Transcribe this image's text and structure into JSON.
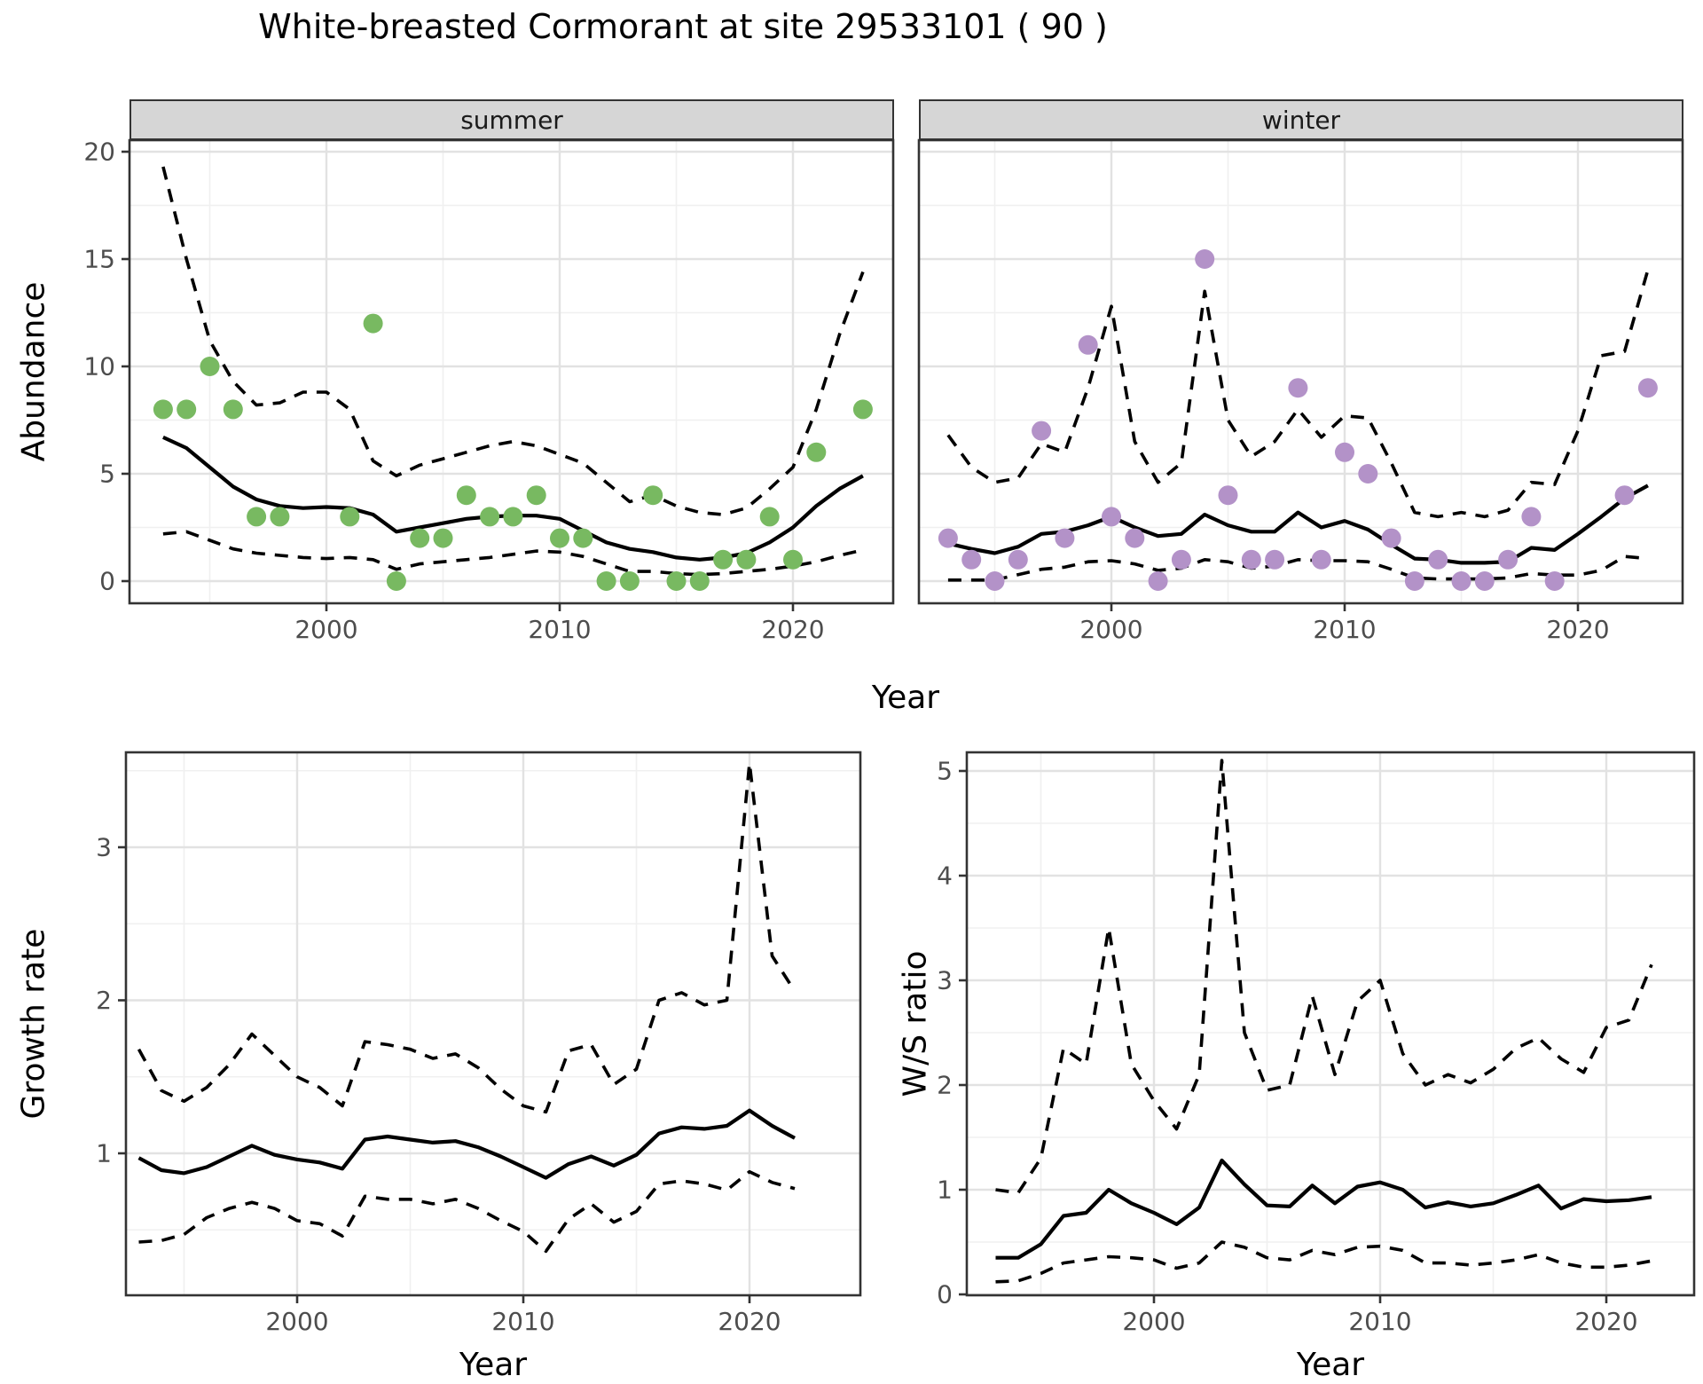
{
  "title": "White-breasted Cormorant at site 29533101 ( 90 )",
  "facets": {
    "summer_label": "summer",
    "winter_label": "winter"
  },
  "axes": {
    "abundance_y_title": "Abundance",
    "top_x_title": "Year",
    "growth_y_title": "Growth rate",
    "growth_x_title": "Year",
    "ws_y_title": "W/S ratio",
    "ws_x_title": "Year"
  },
  "colors": {
    "summer_point": "#78b961",
    "winter_point": "#b392c8",
    "line": "#000000",
    "strip_bg": "#d6d6d6",
    "panel_border": "#333333",
    "grid_major": "#e2e2e2",
    "grid_minor": "#f0f0f0",
    "tick_label": "#4d4d4d"
  },
  "chart_data": [
    {
      "panel": "summer",
      "type": "scatter",
      "title": "summer facet: observed abundance with modelled mean and dashed 90% interval",
      "xlabel": "Year",
      "ylabel": "Abundance",
      "ylim": [
        0,
        20
      ],
      "x_ref": 2000,
      "x_ticks": [
        2000,
        2010,
        2020
      ],
      "x_tick_labels": [
        "2000",
        "2010",
        "2020"
      ],
      "x_minor": [
        1995,
        2005,
        2015
      ],
      "y_ticks": [
        0,
        5,
        10,
        15,
        20
      ],
      "y_tick_labels": [
        "0",
        "5",
        "10",
        "15",
        "20"
      ],
      "y_minor": [
        2.5,
        7.5,
        12.5,
        17.5
      ],
      "years": [
        1993,
        1994,
        1995,
        1996,
        1997,
        1998,
        1999,
        2000,
        2001,
        2002,
        2003,
        2004,
        2005,
        2006,
        2007,
        2008,
        2009,
        2010,
        2011,
        2012,
        2013,
        2014,
        2015,
        2016,
        2017,
        2018,
        2019,
        2020,
        2021,
        2022,
        2023
      ],
      "mean": [
        6.7,
        6.2,
        5.3,
        4.4,
        3.8,
        3.5,
        3.4,
        3.45,
        3.4,
        3.1,
        2.3,
        2.5,
        2.7,
        2.9,
        3.0,
        3.05,
        3.05,
        2.9,
        2.35,
        1.8,
        1.5,
        1.35,
        1.1,
        1.0,
        1.1,
        1.3,
        1.8,
        2.5,
        3.5,
        4.3,
        4.9
      ],
      "ci_upper": [
        19.3,
        15.0,
        11.2,
        9.3,
        8.2,
        8.3,
        8.8,
        8.8,
        8.0,
        5.6,
        4.9,
        5.4,
        5.7,
        6.0,
        6.3,
        6.5,
        6.3,
        5.9,
        5.5,
        4.6,
        3.7,
        4.0,
        3.5,
        3.2,
        3.1,
        3.4,
        4.3,
        5.3,
        8.0,
        11.5,
        14.4
      ],
      "ci_lower": [
        2.2,
        2.3,
        1.9,
        1.5,
        1.3,
        1.2,
        1.1,
        1.05,
        1.1,
        1.0,
        0.55,
        0.8,
        0.9,
        1.0,
        1.1,
        1.25,
        1.4,
        1.35,
        1.15,
        0.8,
        0.45,
        0.45,
        0.35,
        0.3,
        0.35,
        0.45,
        0.55,
        0.7,
        0.9,
        1.2,
        1.45
      ],
      "points": {
        "color": "#78b961",
        "years": [
          1993,
          1994,
          1995,
          1996,
          1997,
          1998,
          2001,
          2002,
          2003,
          2004,
          2005,
          2006,
          2007,
          2008,
          2009,
          2010,
          2011,
          2012,
          2013,
          2014,
          2015,
          2016,
          2017,
          2018,
          2019,
          2020,
          2021,
          2023
        ],
        "values": [
          8,
          8,
          10,
          8,
          3,
          3,
          3,
          12,
          0,
          2,
          2,
          4,
          3,
          3,
          4,
          2,
          2,
          0,
          0,
          4,
          0,
          0,
          1,
          1,
          3,
          1,
          6,
          8
        ]
      }
    },
    {
      "panel": "winter",
      "type": "scatter",
      "title": "winter facet: observed abundance with modelled mean and dashed 90% interval",
      "xlabel": "Year",
      "ylabel": "Abundance",
      "ylim": [
        0,
        20
      ],
      "x_ref": 2000,
      "x_ticks": [
        2000,
        2010,
        2020
      ],
      "x_tick_labels": [
        "2000",
        "2010",
        "2020"
      ],
      "x_minor": [
        1995,
        2005,
        2015
      ],
      "y_ticks": [
        0,
        5,
        10,
        15,
        20
      ],
      "y_tick_labels": [
        "0",
        "5",
        "10",
        "15",
        "20"
      ],
      "y_minor": [
        2.5,
        7.5,
        12.5,
        17.5
      ],
      "years": [
        1993,
        1994,
        1995,
        1996,
        1997,
        1998,
        1999,
        2000,
        2001,
        2002,
        2003,
        2004,
        2005,
        2006,
        2007,
        2008,
        2009,
        2010,
        2011,
        2012,
        2013,
        2014,
        2015,
        2016,
        2017,
        2018,
        2019,
        2020,
        2021,
        2022,
        2023
      ],
      "mean": [
        1.75,
        1.5,
        1.3,
        1.6,
        2.2,
        2.3,
        2.6,
        3.0,
        2.5,
        2.1,
        2.2,
        3.1,
        2.6,
        2.3,
        2.3,
        3.2,
        2.5,
        2.8,
        2.4,
        1.7,
        1.05,
        1.0,
        0.85,
        0.85,
        0.9,
        1.55,
        1.45,
        2.2,
        3.0,
        3.85,
        4.45
      ],
      "ci_upper": [
        6.8,
        5.3,
        4.6,
        4.8,
        6.4,
        6.0,
        9.0,
        12.8,
        6.5,
        4.6,
        5.5,
        13.5,
        7.5,
        5.8,
        6.5,
        8.0,
        6.7,
        7.7,
        7.6,
        5.5,
        3.2,
        3.0,
        3.2,
        3.0,
        3.3,
        4.6,
        4.5,
        7.0,
        10.5,
        10.7,
        14.5
      ],
      "ci_lower": [
        0.05,
        0.05,
        0.05,
        0.3,
        0.55,
        0.65,
        0.9,
        0.95,
        0.8,
        0.5,
        0.6,
        1.0,
        0.9,
        0.6,
        0.7,
        1.0,
        0.95,
        0.95,
        0.9,
        0.55,
        0.15,
        0.1,
        0.1,
        0.1,
        0.15,
        0.35,
        0.28,
        0.28,
        0.5,
        1.15,
        1.05
      ],
      "points": {
        "color": "#b392c8",
        "years": [
          1993,
          1994,
          1995,
          1996,
          1997,
          1998,
          1999,
          2000,
          2001,
          2002,
          2003,
          2004,
          2005,
          2006,
          2007,
          2008,
          2009,
          2010,
          2011,
          2012,
          2013,
          2014,
          2015,
          2016,
          2017,
          2018,
          2019,
          2022,
          2023
        ],
        "values": [
          2,
          1,
          0,
          1,
          7,
          2,
          11,
          3,
          2,
          0,
          1,
          15,
          4,
          1,
          1,
          9,
          1,
          6,
          5,
          2,
          0,
          1,
          0,
          0,
          1,
          3,
          0,
          4,
          9
        ]
      }
    },
    {
      "panel": "growth",
      "type": "line",
      "title": "Growth rate with dashed 90% interval",
      "xlabel": "Year",
      "ylabel": "Growth rate",
      "ylim": [
        0.2,
        3.6
      ],
      "x_ref": 2000,
      "x_ticks": [
        2000,
        2010,
        2020
      ],
      "x_tick_labels": [
        "2000",
        "2010",
        "2020"
      ],
      "x_minor": [
        1995,
        2005,
        2015
      ],
      "y_ticks": [
        1,
        2,
        3
      ],
      "y_tick_labels": [
        "1",
        "2",
        "3"
      ],
      "y_minor": [
        0.5,
        1.5,
        2.5,
        3.5
      ],
      "years": [
        1993,
        1994,
        1995,
        1996,
        1997,
        1998,
        1999,
        2000,
        2001,
        2002,
        2003,
        2004,
        2005,
        2006,
        2007,
        2008,
        2009,
        2010,
        2011,
        2012,
        2013,
        2014,
        2015,
        2016,
        2017,
        2018,
        2019,
        2020,
        2021,
        2022
      ],
      "mean": [
        0.97,
        0.89,
        0.87,
        0.91,
        0.98,
        1.05,
        0.99,
        0.96,
        0.94,
        0.9,
        1.09,
        1.11,
        1.09,
        1.07,
        1.08,
        1.04,
        0.98,
        0.91,
        0.84,
        0.93,
        0.98,
        0.92,
        0.99,
        1.13,
        1.17,
        1.16,
        1.18,
        1.28,
        1.18,
        1.1
      ],
      "ci_upper": [
        1.68,
        1.41,
        1.34,
        1.43,
        1.58,
        1.78,
        1.64,
        1.5,
        1.43,
        1.31,
        1.73,
        1.71,
        1.68,
        1.62,
        1.65,
        1.56,
        1.42,
        1.31,
        1.27,
        1.67,
        1.71,
        1.45,
        1.55,
        2.0,
        2.05,
        1.97,
        2.0,
        3.55,
        2.29,
        2.06
      ],
      "ci_lower": [
        0.42,
        0.43,
        0.47,
        0.58,
        0.64,
        0.68,
        0.64,
        0.56,
        0.54,
        0.46,
        0.72,
        0.7,
        0.7,
        0.67,
        0.7,
        0.64,
        0.56,
        0.49,
        0.36,
        0.57,
        0.67,
        0.55,
        0.62,
        0.8,
        0.82,
        0.8,
        0.76,
        0.88,
        0.81,
        0.77
      ]
    },
    {
      "panel": "ws",
      "type": "line",
      "title": "Winter/Summer ratio with dashed 90% interval",
      "xlabel": "Year",
      "ylabel": "W/S ratio",
      "ylim": [
        0,
        5.2
      ],
      "x_ref": 2000,
      "x_ticks": [
        2000,
        2010,
        2020
      ],
      "x_tick_labels": [
        "2000",
        "2010",
        "2020"
      ],
      "x_minor": [
        1995,
        2005,
        2015
      ],
      "y_ticks": [
        0,
        1,
        2,
        3,
        4,
        5
      ],
      "y_tick_labels": [
        "0",
        "1",
        "2",
        "3",
        "4",
        "5"
      ],
      "y_minor": [
        0.5,
        1.5,
        2.5,
        3.5,
        4.5
      ],
      "years": [
        1993,
        1994,
        1995,
        1996,
        1997,
        1998,
        1999,
        2000,
        2001,
        2002,
        2003,
        2004,
        2005,
        2006,
        2007,
        2008,
        2009,
        2010,
        2011,
        2012,
        2013,
        2014,
        2015,
        2016,
        2017,
        2018,
        2019,
        2020,
        2021,
        2022
      ],
      "mean": [
        0.35,
        0.35,
        0.48,
        0.75,
        0.78,
        1.0,
        0.87,
        0.78,
        0.67,
        0.83,
        1.28,
        1.05,
        0.85,
        0.84,
        1.04,
        0.87,
        1.03,
        1.07,
        1.0,
        0.83,
        0.88,
        0.84,
        0.87,
        0.95,
        1.04,
        0.82,
        0.91,
        0.89,
        0.9,
        0.93
      ],
      "ci_upper": [
        1.0,
        0.97,
        1.3,
        2.35,
        2.2,
        3.5,
        2.2,
        1.85,
        1.58,
        2.1,
        5.1,
        2.5,
        1.95,
        2.0,
        2.85,
        2.1,
        2.8,
        3.0,
        2.3,
        2.0,
        2.1,
        2.02,
        2.15,
        2.35,
        2.45,
        2.25,
        2.12,
        2.55,
        2.62,
        3.15
      ],
      "ci_lower": [
        0.12,
        0.13,
        0.2,
        0.3,
        0.33,
        0.36,
        0.35,
        0.33,
        0.25,
        0.3,
        0.5,
        0.45,
        0.35,
        0.33,
        0.42,
        0.38,
        0.45,
        0.46,
        0.42,
        0.3,
        0.3,
        0.28,
        0.3,
        0.33,
        0.38,
        0.3,
        0.26,
        0.26,
        0.28,
        0.32
      ]
    }
  ]
}
